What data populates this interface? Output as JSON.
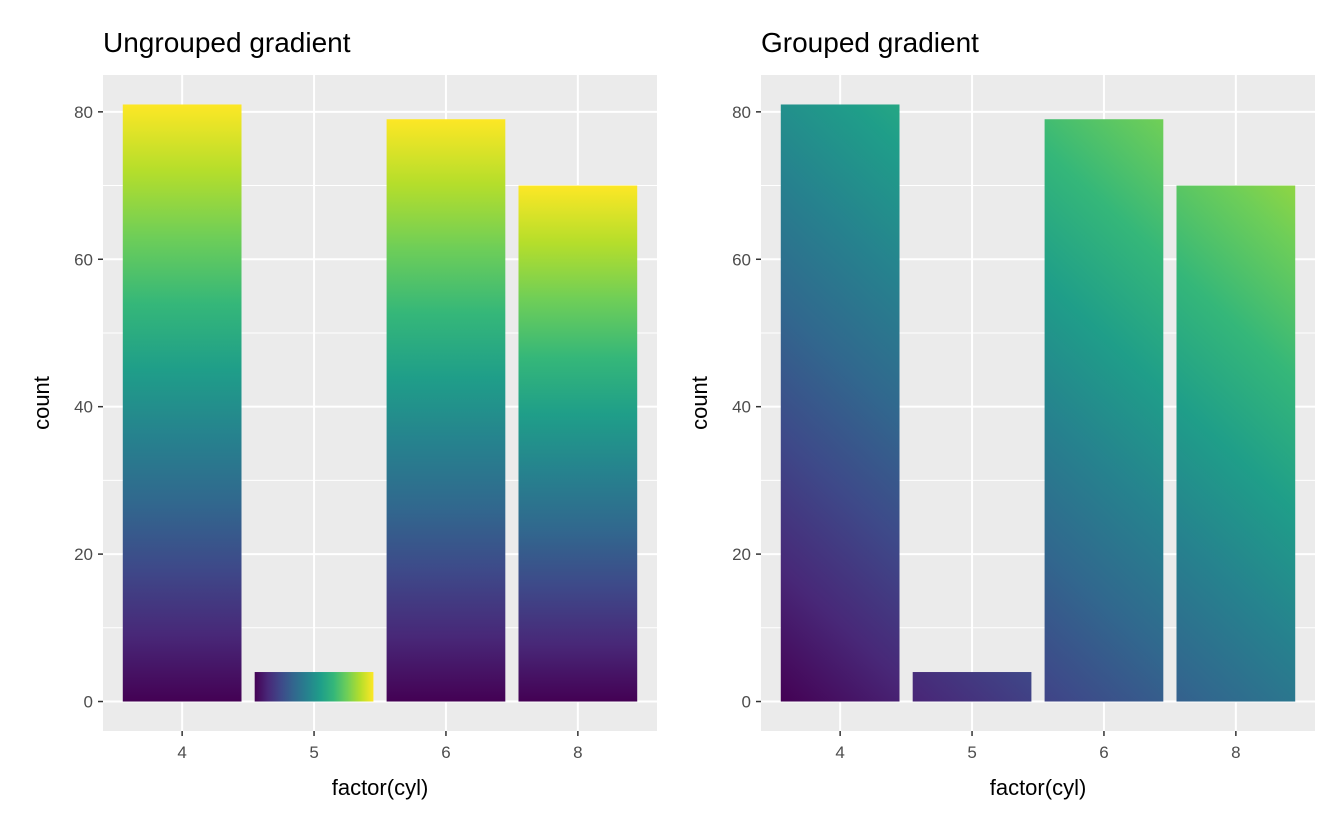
{
  "chart_data": [
    {
      "type": "bar",
      "title": "Ungrouped gradient",
      "xlabel": "factor(cyl)",
      "ylabel": "count",
      "categories": [
        "4",
        "5",
        "6",
        "8"
      ],
      "values": [
        81,
        4,
        79,
        70
      ],
      "ylim": [
        -4,
        85
      ],
      "yticks": [
        "0",
        "20",
        "40",
        "60",
        "80"
      ],
      "grid": true,
      "fill": "viridis gradient per bar"
    },
    {
      "type": "bar",
      "title": "Grouped gradient",
      "xlabel": "factor(cyl)",
      "ylabel": "count",
      "categories": [
        "4",
        "5",
        "6",
        "8"
      ],
      "values": [
        81,
        4,
        79,
        70
      ],
      "ylim": [
        -4,
        85
      ],
      "yticks": [
        "0",
        "20",
        "40",
        "60",
        "80"
      ],
      "grid": true,
      "fill": "viridis gradient across all bars"
    }
  ],
  "colors": {
    "panel_bg": "#ebebeb",
    "grid": "#ffffff",
    "viridis": [
      "#440154",
      "#482878",
      "#3e4989",
      "#31688e",
      "#26828e",
      "#1f9e89",
      "#35b779",
      "#6ece58",
      "#b5de2b",
      "#fde725"
    ]
  }
}
